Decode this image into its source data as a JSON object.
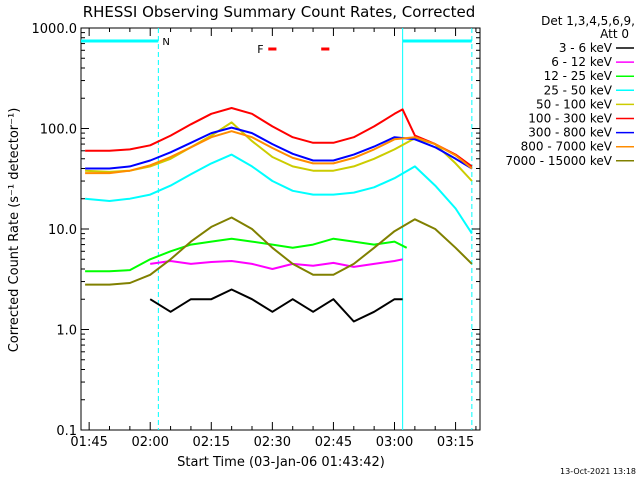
{
  "chart_data": {
    "type": "line",
    "title": "RHESSI Observing Summary Count Rates, Corrected",
    "xlabel": "Start Time (03-Jan-06 01:43:42)",
    "ylabel": "Corrected Count Rate (s⁻¹ detector⁻¹)",
    "y_scale": "log",
    "ylim": [
      0.1,
      1000
    ],
    "xlim": [
      "01:43",
      "03:21"
    ],
    "x_tick_labels": [
      "01:45",
      "02:00",
      "02:15",
      "02:30",
      "02:45",
      "03:00",
      "03:15"
    ],
    "y_tick_labels": [
      "0.1",
      "1.0",
      "10.0",
      "100.0",
      "1000.0"
    ],
    "detector_note_line1": "Det 1,3,4,5,6,9,",
    "detector_note_line2": "Att 0",
    "night_marker_label": "N",
    "flare_marker_label": "F",
    "footer_date": "13-Oct-2021 13:18",
    "night_intervals": [
      [
        "01:43",
        "02:02"
      ],
      [
        "03:02",
        "03:19"
      ]
    ],
    "flare_intervals": [
      [
        "02:29",
        "02:31"
      ],
      [
        "02:42",
        "02:44"
      ]
    ],
    "series": [
      {
        "name": "3 - 6 keV",
        "color": "#000000",
        "x": [
          "02:00",
          "02:05",
          "02:10",
          "02:15",
          "02:20",
          "02:25",
          "02:30",
          "02:35",
          "02:40",
          "02:45",
          "02:50",
          "02:55",
          "03:00",
          "03:02"
        ],
        "y": [
          2.0,
          1.5,
          2.0,
          2.0,
          2.5,
          2.0,
          1.5,
          2.0,
          1.5,
          2.0,
          1.2,
          1.5,
          2.0,
          2.0
        ]
      },
      {
        "name": "6 - 12 keV",
        "color": "#ff00ff",
        "x": [
          "02:00",
          "02:05",
          "02:10",
          "02:15",
          "02:20",
          "02:25",
          "02:30",
          "02:35",
          "02:40",
          "02:45",
          "02:50",
          "02:55",
          "03:00",
          "03:02"
        ],
        "y": [
          4.5,
          4.8,
          4.5,
          4.7,
          4.8,
          4.5,
          4.0,
          4.5,
          4.3,
          4.6,
          4.2,
          4.5,
          4.8,
          5.0
        ]
      },
      {
        "name": "12 - 25 keV",
        "color": "#00ff00",
        "x": [
          "01:44",
          "01:50",
          "01:55",
          "02:00",
          "02:05",
          "02:10",
          "02:15",
          "02:20",
          "02:25",
          "02:30",
          "02:35",
          "02:40",
          "02:45",
          "02:50",
          "02:55",
          "03:00",
          "03:03"
        ],
        "y": [
          3.8,
          3.8,
          3.9,
          5.0,
          6.0,
          7.0,
          7.5,
          8.0,
          7.5,
          7.0,
          6.5,
          7.0,
          8.0,
          7.5,
          7.0,
          7.5,
          6.5
        ]
      },
      {
        "name": "25 - 50 keV",
        "color": "#00ffff",
        "x": [
          "01:44",
          "01:50",
          "01:55",
          "02:00",
          "02:05",
          "02:10",
          "02:15",
          "02:20",
          "02:25",
          "02:30",
          "02:35",
          "02:40",
          "02:45",
          "02:50",
          "02:55",
          "03:00",
          "03:05",
          "03:10",
          "03:15",
          "03:19"
        ],
        "y": [
          20,
          19,
          20,
          22,
          27,
          35,
          45,
          55,
          42,
          30,
          24,
          22,
          22,
          23,
          26,
          32,
          42,
          27,
          16,
          9
        ]
      },
      {
        "name": "50 - 100 keV",
        "color": "#cccc00",
        "x": [
          "01:44",
          "01:50",
          "01:55",
          "02:00",
          "02:05",
          "02:10",
          "02:15",
          "02:20",
          "02:25",
          "02:30",
          "02:35",
          "02:40",
          "02:45",
          "02:50",
          "02:55",
          "03:00",
          "03:05",
          "03:10",
          "03:15",
          "03:19"
        ],
        "y": [
          38,
          37,
          38,
          42,
          50,
          65,
          85,
          115,
          75,
          52,
          42,
          38,
          38,
          42,
          50,
          62,
          80,
          70,
          45,
          30
        ]
      },
      {
        "name": "100 - 300 keV",
        "color": "#ff0000",
        "x": [
          "01:44",
          "01:50",
          "01:55",
          "02:00",
          "02:05",
          "02:10",
          "02:15",
          "02:20",
          "02:25",
          "02:30",
          "02:35",
          "02:40",
          "02:45",
          "02:50",
          "02:55",
          "03:00",
          "03:02",
          "03:05",
          "03:10",
          "03:15",
          "03:19"
        ],
        "y": [
          60,
          60,
          62,
          68,
          85,
          110,
          140,
          160,
          140,
          105,
          82,
          72,
          72,
          82,
          105,
          140,
          155,
          85,
          70,
          55,
          42
        ]
      },
      {
        "name": "300 - 800 keV",
        "color": "#0000ff",
        "x": [
          "01:44",
          "01:50",
          "01:55",
          "02:00",
          "02:05",
          "02:10",
          "02:15",
          "02:20",
          "02:25",
          "02:30",
          "02:35",
          "02:40",
          "02:45",
          "02:50",
          "02:55",
          "03:00",
          "03:05",
          "03:10",
          "03:15",
          "03:19"
        ],
        "y": [
          40,
          40,
          42,
          48,
          58,
          72,
          90,
          102,
          90,
          70,
          56,
          48,
          48,
          55,
          66,
          82,
          78,
          65,
          50,
          40
        ]
      },
      {
        "name": "800 - 7000 keV",
        "color": "#ff8c00",
        "x": [
          "01:44",
          "01:50",
          "01:55",
          "02:00",
          "02:05",
          "02:10",
          "02:15",
          "02:20",
          "02:25",
          "02:30",
          "02:35",
          "02:40",
          "02:45",
          "02:50",
          "02:55",
          "03:00",
          "03:05",
          "03:10",
          "03:15",
          "03:19"
        ],
        "y": [
          36,
          36,
          38,
          43,
          52,
          65,
          82,
          94,
          82,
          64,
          51,
          45,
          45,
          51,
          62,
          78,
          82,
          70,
          54,
          40
        ]
      },
      {
        "name": "7000 - 15000 keV",
        "color": "#808000",
        "x": [
          "01:44",
          "01:50",
          "01:55",
          "02:00",
          "02:05",
          "02:10",
          "02:15",
          "02:20",
          "02:25",
          "02:30",
          "02:35",
          "02:40",
          "02:45",
          "02:50",
          "02:55",
          "03:00",
          "03:05",
          "03:10",
          "03:15",
          "03:19"
        ],
        "y": [
          2.8,
          2.8,
          2.9,
          3.5,
          5.0,
          7.5,
          10.5,
          13.0,
          10.0,
          6.5,
          4.5,
          3.5,
          3.5,
          4.5,
          6.5,
          9.5,
          12.5,
          10.0,
          6.5,
          4.5
        ]
      }
    ]
  }
}
